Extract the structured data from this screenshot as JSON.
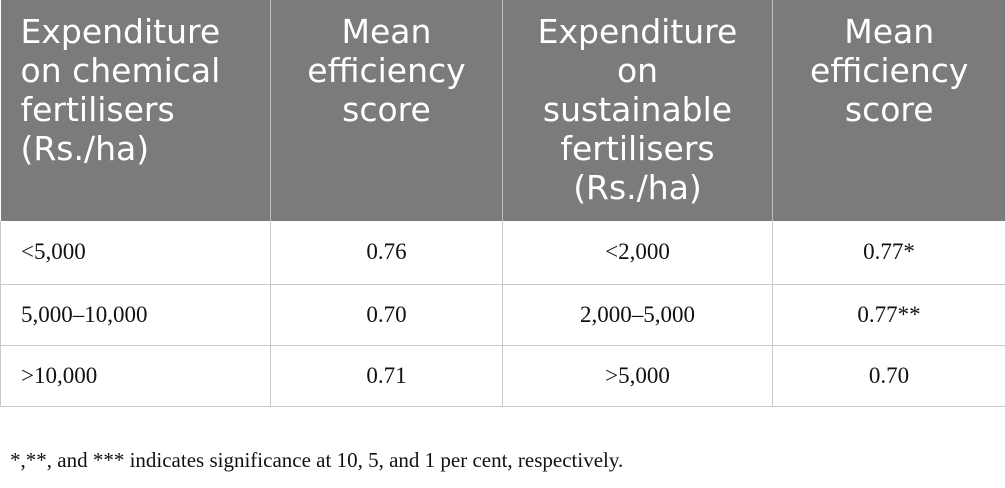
{
  "table": {
    "headers": [
      "Expenditure on chemical fertilisers (Rs./ha)",
      "Mean efficiency score",
      "Expenditure on sustainable fertilisers (Rs./ha)",
      "Mean efficiency score"
    ],
    "header_lines": [
      [
        "Expenditure",
        "on chemical",
        "fertilisers",
        "(Rs./ha)"
      ],
      [
        "Mean",
        "efficiency",
        "score"
      ],
      [
        "Expenditure",
        "on",
        "sustainable",
        "fertilisers",
        "(Rs./ha)"
      ],
      [
        "Mean",
        "efficiency",
        "score"
      ]
    ],
    "rows": [
      [
        "<5,000",
        "0.76",
        "<2,000",
        "0.77*"
      ],
      [
        "5,000–10,000",
        "0.70",
        "2,000–5,000",
        "0.77**"
      ],
      [
        ">10,000",
        "0.71",
        ">5,000",
        "0.70"
      ]
    ]
  },
  "footnote": "*,**, and *** indicates significance at 10, 5, and 1 per cent, respectively.",
  "colors": {
    "header_bg": "#7b7b7b",
    "header_text": "#ffffff",
    "border": "#c9c9c9"
  }
}
